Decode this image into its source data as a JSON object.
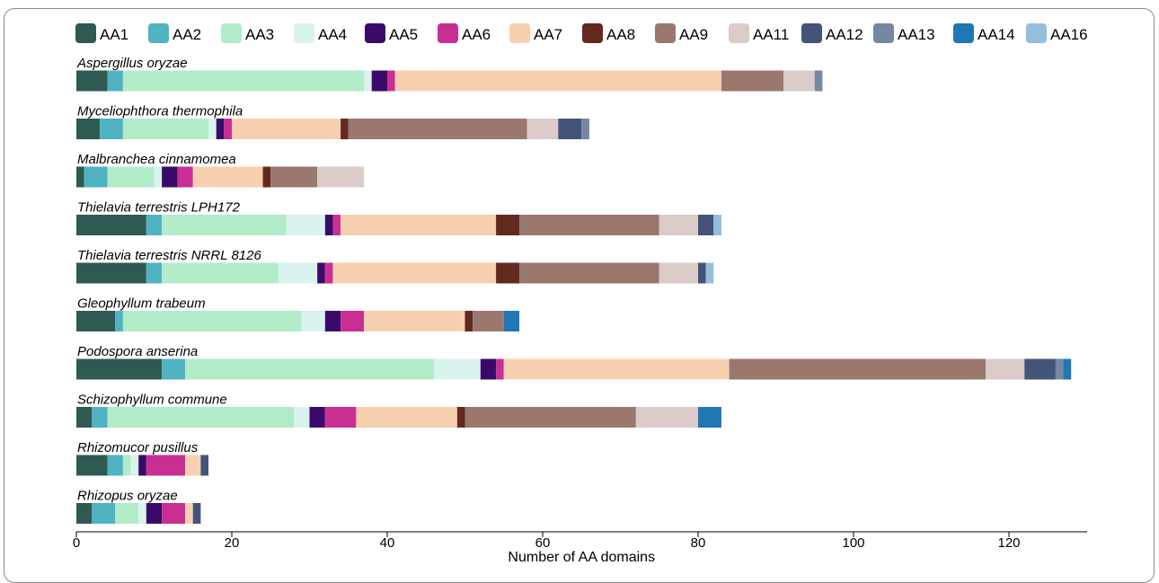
{
  "chart_data": {
    "type": "bar",
    "orientation": "horizontal",
    "stacked": true,
    "xlabel": "Number of AA domains",
    "xlim": [
      0,
      130
    ],
    "xticks": [
      0,
      20,
      40,
      60,
      80,
      100,
      120
    ],
    "grid": false,
    "legend_position": "top",
    "categories": [
      "Aspergillus oryzae",
      "Myceliophthora thermophila",
      "Malbranchea cinnamomea",
      "Thielavia terrestris LPH172",
      "Thielavia terrestris NRRL 8126",
      "Gleophyllum trabeum",
      "Podospora anserina",
      "Schizophyllum commune",
      "Rhizomucor pusillus",
      "Rhizopus oryzae"
    ],
    "series": [
      {
        "name": "AA1",
        "color": "#2e5a52",
        "values": [
          4,
          3,
          1,
          9,
          9,
          5,
          11,
          2,
          4,
          2
        ]
      },
      {
        "name": "AA2",
        "color": "#4fb3c2",
        "values": [
          2,
          3,
          3,
          2,
          2,
          1,
          3,
          2,
          2,
          3
        ]
      },
      {
        "name": "AA3",
        "color": "#b2ecc8",
        "values": [
          31,
          11,
          6,
          16,
          15,
          23,
          32,
          24,
          1,
          3
        ]
      },
      {
        "name": "AA4",
        "color": "#d9f3ef",
        "values": [
          1,
          1,
          1,
          5,
          5,
          3,
          6,
          2,
          1,
          1
        ]
      },
      {
        "name": "AA5",
        "color": "#3a0a6b",
        "values": [
          2,
          1,
          2,
          1,
          1,
          2,
          2,
          2,
          1,
          2
        ]
      },
      {
        "name": "AA6",
        "color": "#c92f92",
        "values": [
          1,
          1,
          2,
          1,
          1,
          3,
          1,
          4,
          5,
          3
        ]
      },
      {
        "name": "AA7",
        "color": "#f7d0b0",
        "values": [
          42,
          14,
          9,
          20,
          21,
          13,
          29,
          13,
          2,
          1
        ]
      },
      {
        "name": "AA8",
        "color": "#63291f",
        "values": [
          0,
          1,
          1,
          3,
          3,
          1,
          0,
          1,
          0,
          0
        ]
      },
      {
        "name": "AA9",
        "color": "#9a786e",
        "values": [
          8,
          23,
          6,
          18,
          18,
          4,
          33,
          22,
          0,
          0
        ]
      },
      {
        "name": "AA11",
        "color": "#dbcbc9",
        "values": [
          4,
          4,
          6,
          5,
          5,
          0,
          5,
          8,
          0,
          0
        ]
      },
      {
        "name": "AA12",
        "color": "#435478",
        "values": [
          0,
          3,
          0,
          2,
          1,
          0,
          4,
          0,
          1,
          1
        ]
      },
      {
        "name": "AA13",
        "color": "#7588a3",
        "values": [
          1,
          1,
          0,
          0,
          0,
          0,
          1,
          0,
          0,
          0
        ]
      },
      {
        "name": "AA14",
        "color": "#1f78b4",
        "values": [
          0,
          0,
          0,
          0,
          0,
          2,
          1,
          3,
          0,
          0
        ]
      },
      {
        "name": "AA16",
        "color": "#95bedd",
        "values": [
          0,
          0,
          0,
          1,
          1,
          0,
          0,
          0,
          0,
          0
        ]
      }
    ]
  }
}
